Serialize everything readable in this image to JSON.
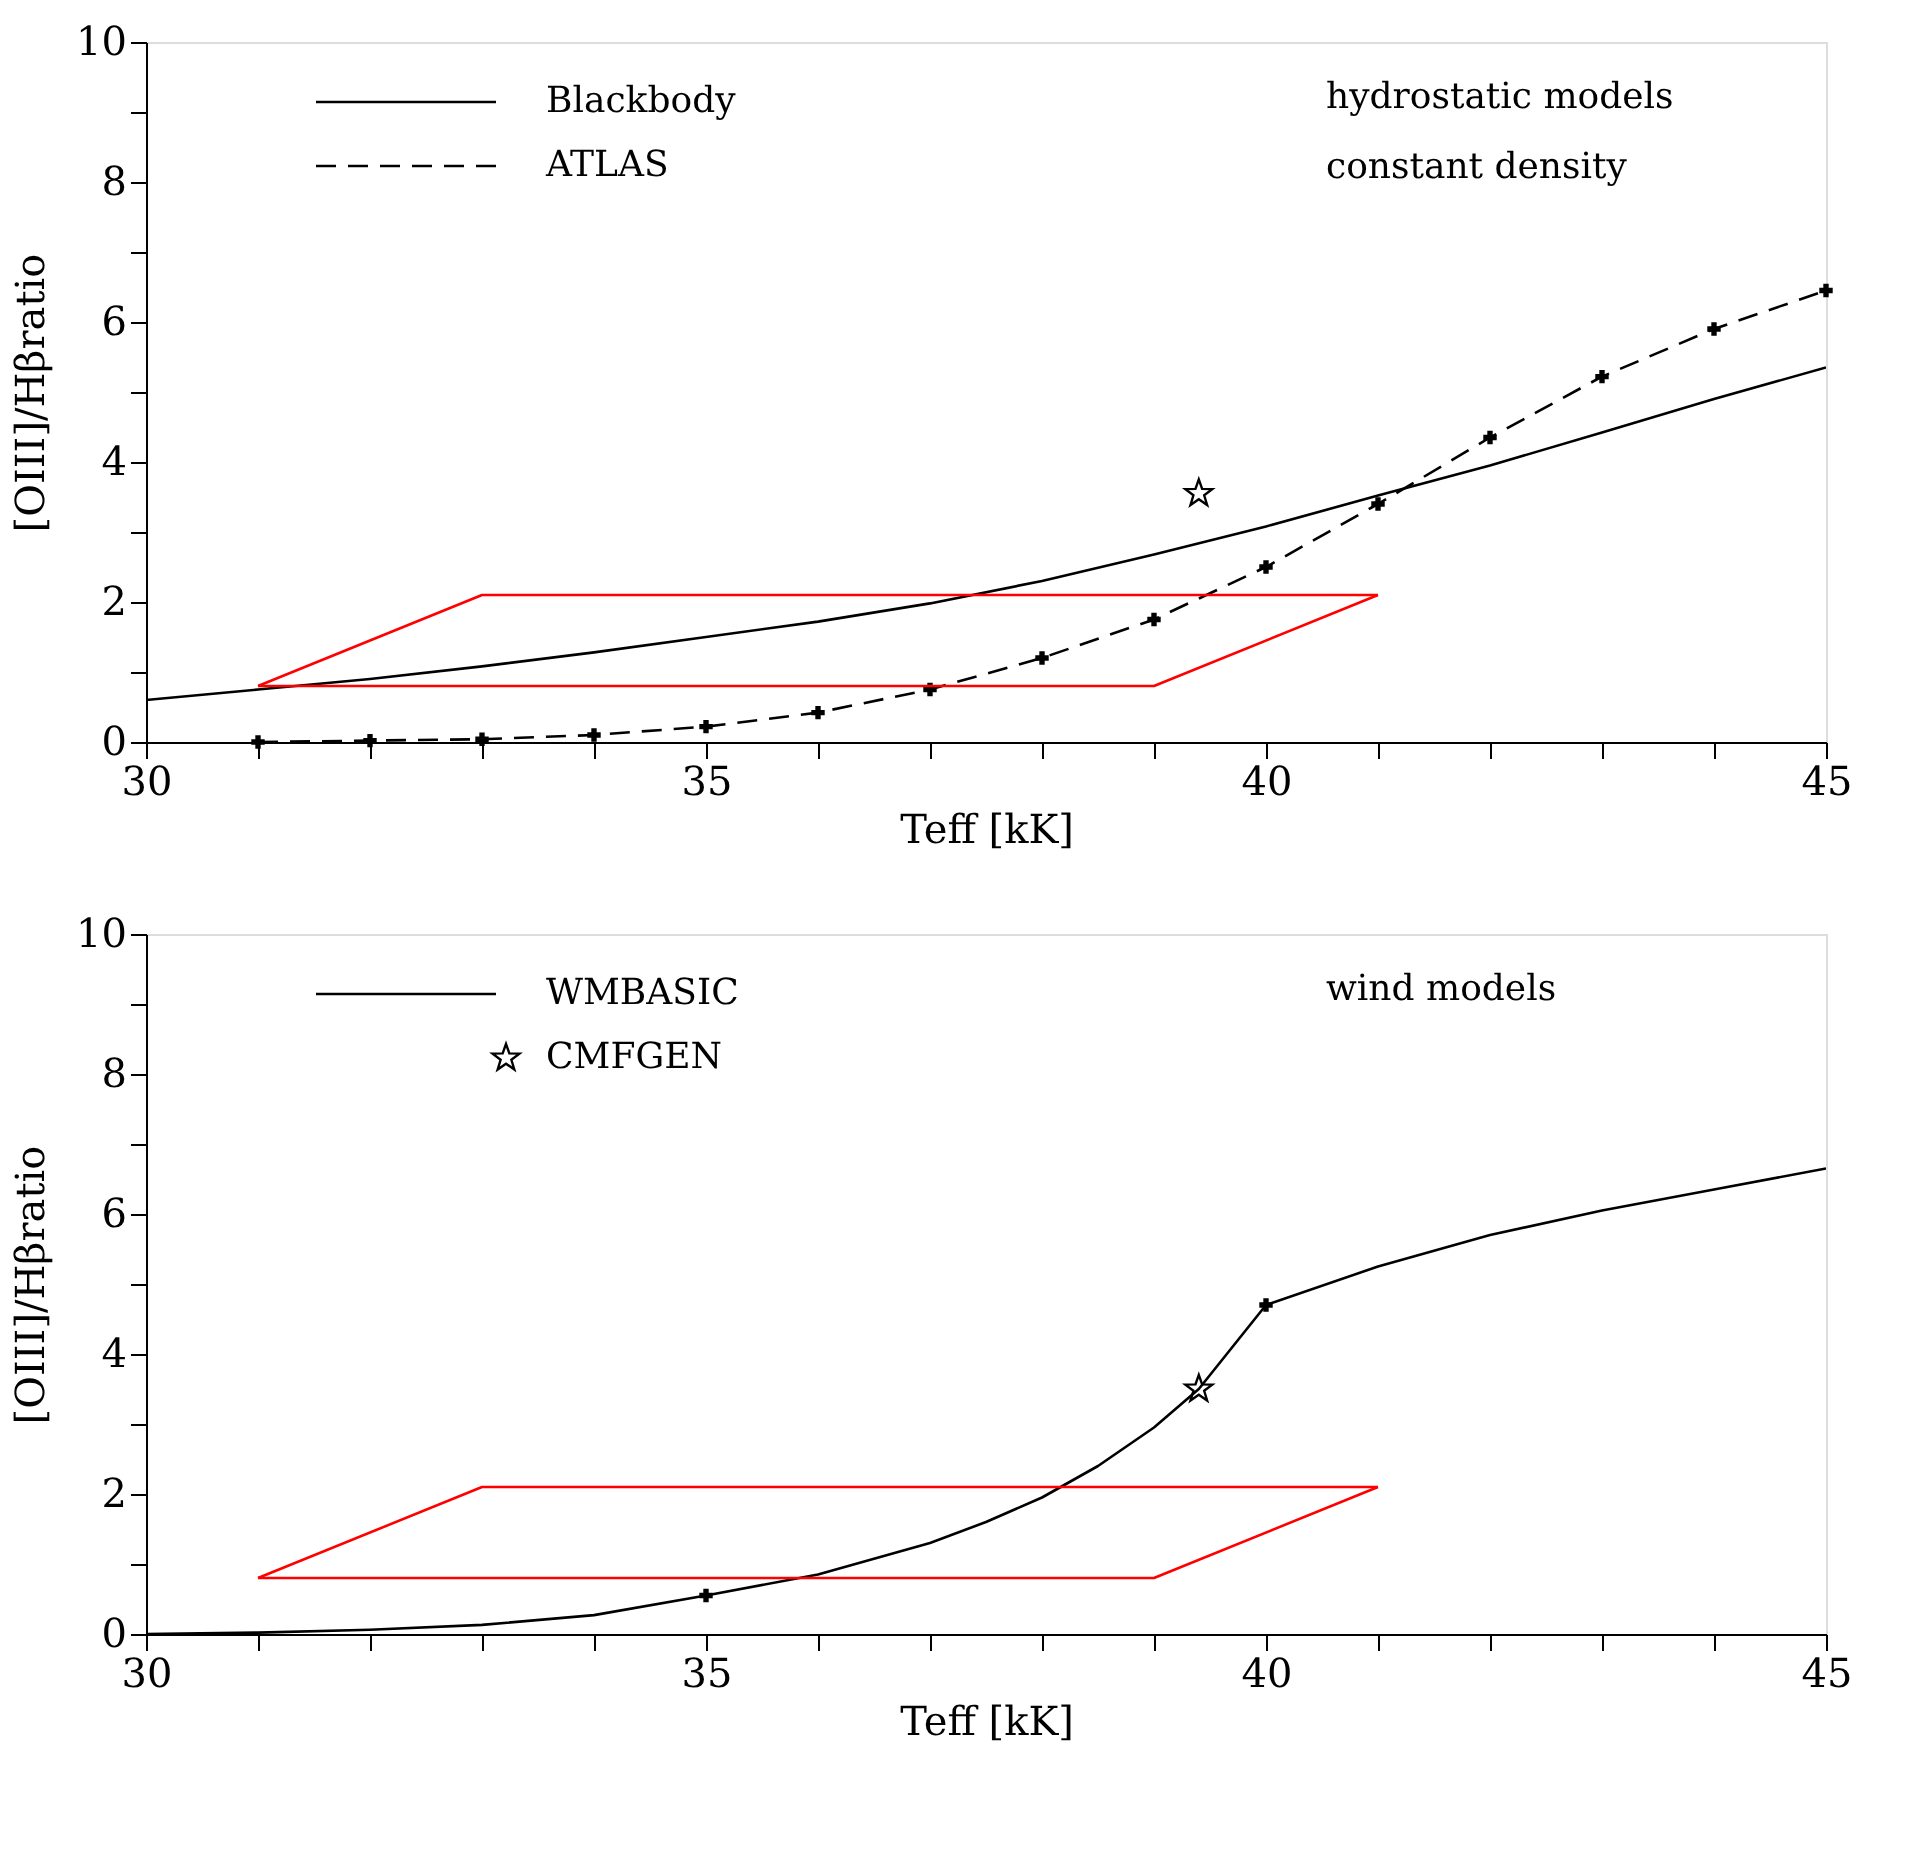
{
  "chart_data": [
    {
      "type": "line",
      "xlabel": "Teff [kK]",
      "ylabel": "[OIII]/Hβratio",
      "xlim": [
        30,
        45
      ],
      "ylim": [
        0,
        10
      ],
      "xticks": [
        30,
        {
          "value": 31,
          "label": null
        },
        {
          "value": 32,
          "label": null
        },
        {
          "value": 33,
          "label": null
        },
        {
          "value": 34,
          "label": null
        },
        35,
        {
          "value": 36,
          "label": null
        },
        {
          "value": 37,
          "label": null
        },
        {
          "value": 38,
          "label": null
        },
        {
          "value": 39,
          "label": null
        },
        40,
        {
          "value": 41,
          "label": null
        },
        {
          "value": 42,
          "label": null
        },
        {
          "value": 43,
          "label": null
        },
        {
          "value": 44,
          "label": null
        },
        45
      ],
      "yticks": [
        0,
        {
          "value": 1,
          "label": null
        },
        2,
        {
          "value": 3,
          "label": null
        },
        4,
        {
          "value": 5,
          "label": null
        },
        6,
        {
          "value": 7,
          "label": null
        },
        8,
        {
          "value": 9,
          "label": null
        },
        10
      ],
      "grid": false,
      "legend": "top left",
      "annotations": [
        "hydrostatic models",
        "constant density"
      ],
      "series": [
        {
          "name": "Blackbody",
          "type": "line",
          "color": "#000000",
          "line_style": "solid",
          "marker": "none",
          "x": [
            30,
            31,
            32,
            33,
            34,
            35,
            36,
            37,
            38,
            39,
            40,
            41,
            42,
            43,
            44,
            45
          ],
          "values": [
            0.6,
            0.75,
            0.9,
            1.08,
            1.28,
            1.5,
            1.72,
            1.98,
            2.3,
            2.68,
            3.08,
            3.52,
            3.95,
            4.42,
            4.9,
            5.35
          ]
        },
        {
          "name": "ATLAS",
          "type": "line",
          "color": "#000000",
          "line_style": "dashed",
          "marker": "cross",
          "x": [
            31,
            32,
            33,
            34,
            35,
            36,
            37,
            38,
            39,
            40,
            41,
            42,
            43,
            44,
            45
          ],
          "values": [
            0.0,
            0.02,
            0.04,
            0.1,
            0.22,
            0.42,
            0.75,
            1.2,
            1.75,
            2.5,
            3.4,
            4.35,
            5.22,
            5.9,
            6.45
          ]
        },
        {
          "type": "scatter",
          "color": "#000000",
          "marker": "star",
          "x": [
            39.4
          ],
          "values": [
            3.55
          ]
        },
        {
          "type": "line",
          "color": "#ff0000",
          "line_style": "solid",
          "marker": "none",
          "x": [
            31,
            33,
            41
          ],
          "values": [
            0.8,
            2.1,
            2.1
          ]
        },
        {
          "type": "line",
          "color": "#ff0000",
          "line_style": "solid",
          "marker": "none",
          "x": [
            31,
            39,
            41
          ],
          "values": [
            0.8,
            0.8,
            2.1
          ]
        }
      ]
    },
    {
      "type": "line",
      "xlabel": "Teff [kK]",
      "ylabel": "[OIII]/Hβratio",
      "xlim": [
        30,
        45
      ],
      "ylim": [
        0,
        10
      ],
      "xticks": [
        30,
        {
          "value": 31,
          "label": null
        },
        {
          "value": 32,
          "label": null
        },
        {
          "value": 33,
          "label": null
        },
        {
          "value": 34,
          "label": null
        },
        35,
        {
          "value": 36,
          "label": null
        },
        {
          "value": 37,
          "label": null
        },
        {
          "value": 38,
          "label": null
        },
        {
          "value": 39,
          "label": null
        },
        40,
        {
          "value": 41,
          "label": null
        },
        {
          "value": 42,
          "label": null
        },
        {
          "value": 43,
          "label": null
        },
        {
          "value": 44,
          "label": null
        },
        45
      ],
      "yticks": [
        0,
        {
          "value": 1,
          "label": null
        },
        2,
        {
          "value": 3,
          "label": null
        },
        4,
        {
          "value": 5,
          "label": null
        },
        6,
        {
          "value": 7,
          "label": null
        },
        8,
        {
          "value": 9,
          "label": null
        },
        10
      ],
      "grid": false,
      "legend": "top left",
      "annotations": [
        "wind models"
      ],
      "series": [
        {
          "name": "WMBASIC",
          "type": "line",
          "color": "#000000",
          "line_style": "solid",
          "marker": "none",
          "x": [
            30,
            31,
            32,
            33,
            34,
            35,
            36,
            37,
            37.5,
            38,
            38.5,
            39,
            39.4,
            40,
            41,
            42,
            43,
            44,
            45
          ],
          "values": [
            0.0,
            0.02,
            0.06,
            0.13,
            0.27,
            0.55,
            0.85,
            1.3,
            1.6,
            1.95,
            2.4,
            2.95,
            3.5,
            4.7,
            5.25,
            5.7,
            6.05,
            6.35,
            6.65
          ]
        },
        {
          "type": "scatter",
          "color": "#000000",
          "marker": "cross",
          "x": [
            35,
            40
          ],
          "values": [
            0.55,
            4.7
          ]
        },
        {
          "name": "CMFGEN",
          "type": "scatter",
          "color": "#000000",
          "marker": "star",
          "x": [
            39.4
          ],
          "values": [
            3.5
          ]
        },
        {
          "type": "line",
          "color": "#ff0000",
          "line_style": "solid",
          "marker": "none",
          "x": [
            31,
            33,
            41
          ],
          "values": [
            0.8,
            2.1,
            2.1
          ]
        },
        {
          "type": "line",
          "color": "#ff0000",
          "line_style": "solid",
          "marker": "none",
          "x": [
            31,
            39,
            41
          ],
          "values": [
            0.8,
            0.8,
            2.1
          ]
        }
      ]
    }
  ]
}
